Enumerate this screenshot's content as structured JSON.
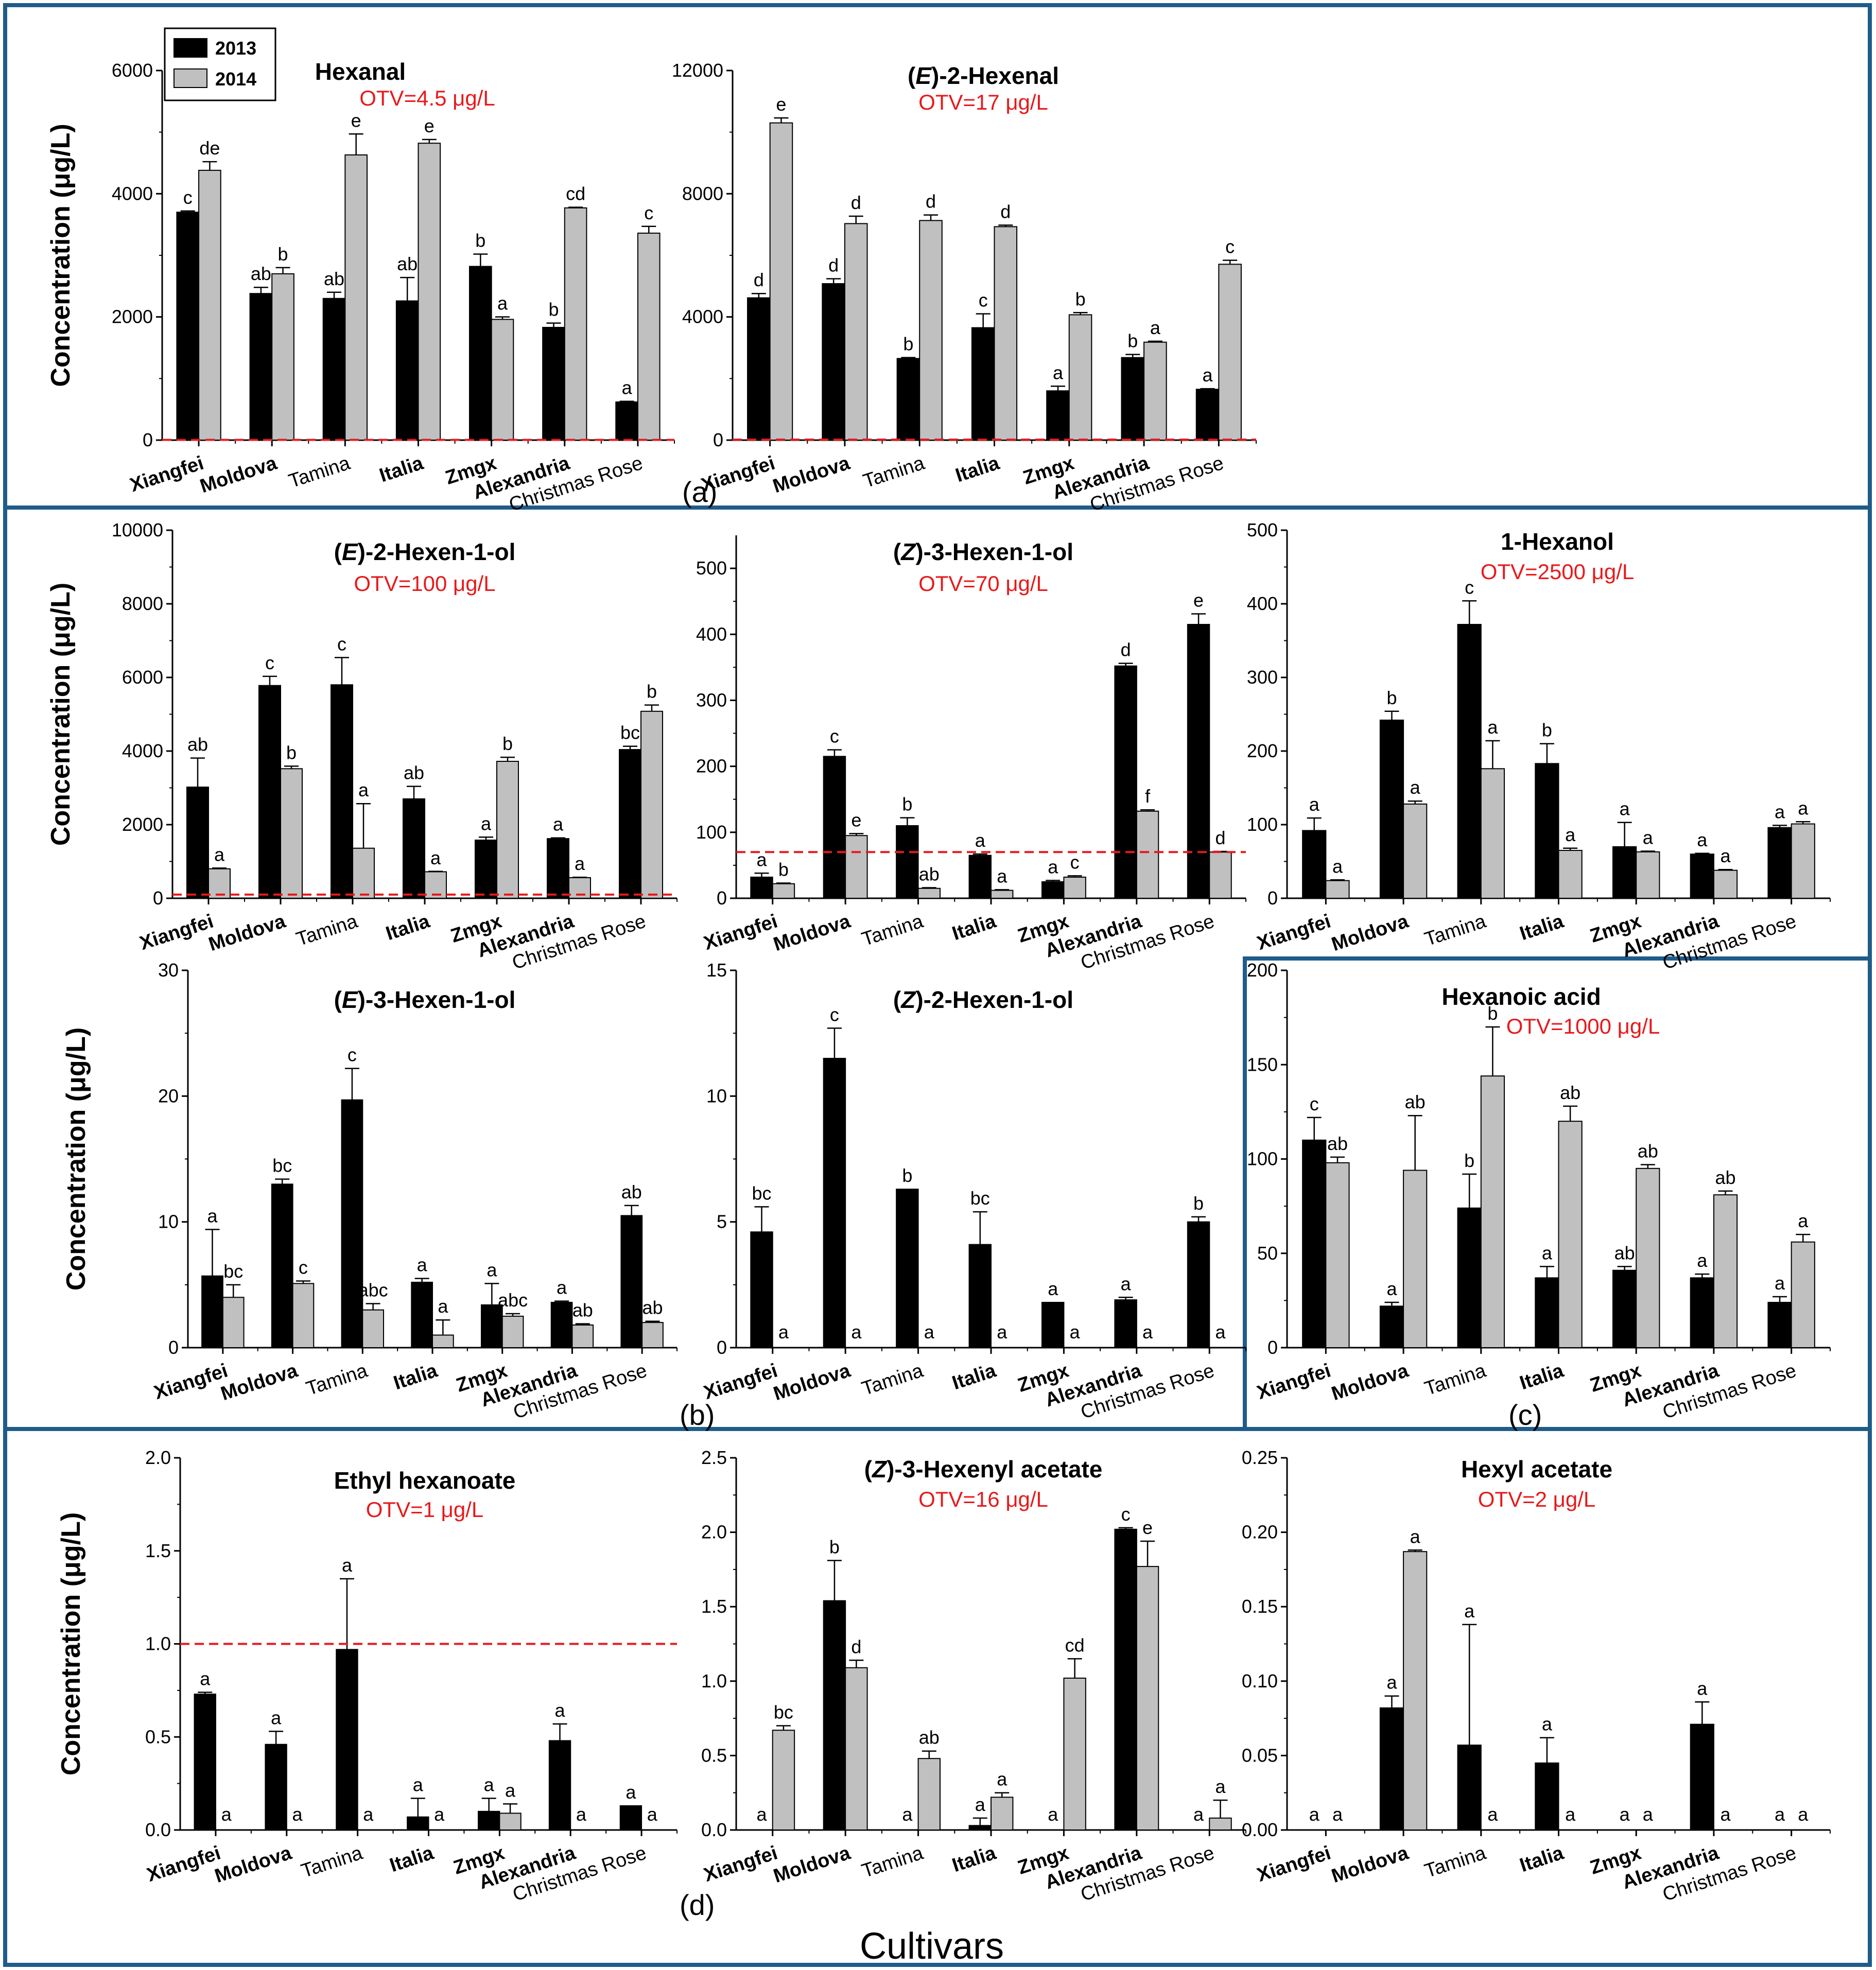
{
  "legend": [
    "2013",
    "2014"
  ],
  "colors": {
    "s2013": "#000000",
    "s2014": "#c0c0c0",
    "otv": "#e8191b",
    "frame": "#1f5c8a"
  },
  "cultivars": [
    "Xiangfei",
    "Moldova",
    "Tamina",
    "Italia",
    "Zmgx",
    "Alexandria",
    "Christmas Rose"
  ],
  "bold_cultivars": [
    "Xiangfei",
    "Moldova",
    "Italia",
    "Zmgx",
    "Alexandria"
  ],
  "panel_labels": [
    "(a)",
    "(b)",
    "(c)",
    "(d)"
  ],
  "x_title": "Cultivars",
  "ylabel": "Concentration (μg/L)",
  "chart_data": [
    {
      "id": "hexanal",
      "type": "bar",
      "title": "Hexanal",
      "title_parts": [
        {
          "t": "Hexanal",
          "i": false
        }
      ],
      "otv_label": "OTV=4.5 μg/L",
      "otv": 4.5,
      "ylim": [
        0,
        6000
      ],
      "yticks": [
        0,
        2000,
        4000,
        6000
      ],
      "series": [
        {
          "name": "2013",
          "values": [
            3700,
            2380,
            2300,
            2260,
            2820,
            1830,
            620
          ],
          "err": [
            20,
            100,
            100,
            380,
            200,
            70,
            10
          ],
          "sig": [
            "c",
            "ab",
            "ab",
            "ab",
            "b",
            "b",
            "a"
          ]
        },
        {
          "name": "2014",
          "values": [
            4380,
            2700,
            4630,
            4820,
            1960,
            3770,
            3360
          ],
          "err": [
            140,
            100,
            340,
            60,
            40,
            10,
            110
          ],
          "sig": [
            "de",
            "b",
            "e",
            "e",
            "a",
            "cd",
            "c"
          ]
        }
      ]
    },
    {
      "id": "e2hexenal",
      "type": "bar",
      "title": "(E)-2-Hexenal",
      "title_parts": [
        {
          "t": "(",
          "i": false
        },
        {
          "t": "E",
          "i": true
        },
        {
          "t": ")-2-Hexenal",
          "i": false
        }
      ],
      "otv_label": "OTV=17 μg/L",
      "otv": 17,
      "ylim": [
        0,
        12000
      ],
      "yticks": [
        0,
        4000,
        8000,
        12000
      ],
      "series": [
        {
          "name": "2013",
          "values": [
            4620,
            5080,
            2650,
            3650,
            1600,
            2680,
            1650
          ],
          "err": [
            140,
            160,
            30,
            450,
            150,
            100,
            20
          ],
          "sig": [
            "d",
            "d",
            "b",
            "c",
            "a",
            "b",
            "a"
          ]
        },
        {
          "name": "2014",
          "values": [
            10300,
            7030,
            7130,
            6930,
            4070,
            3180,
            5710
          ],
          "err": [
            160,
            240,
            180,
            50,
            70,
            30,
            130
          ],
          "sig": [
            "e",
            "d",
            "d",
            "d",
            "b",
            "a",
            "c"
          ]
        }
      ]
    },
    {
      "id": "e2hexenol",
      "type": "bar",
      "title": "(E)-2-Hexen-1-ol",
      "title_parts": [
        {
          "t": "(",
          "i": false
        },
        {
          "t": "E",
          "i": true
        },
        {
          "t": ")-2-Hexen-1-ol",
          "i": false
        }
      ],
      "otv_label": "OTV=100 μg/L",
      "otv": 100,
      "ylim": [
        0,
        10000
      ],
      "yticks": [
        0,
        2000,
        4000,
        6000,
        8000,
        10000
      ],
      "series": [
        {
          "name": "2013",
          "values": [
            3020,
            5780,
            5800,
            2700,
            1580,
            1620,
            4040
          ],
          "err": [
            790,
            250,
            740,
            340,
            80,
            20,
            90
          ],
          "sig": [
            "ab",
            "c",
            "c",
            "ab",
            "a",
            "a",
            "bc"
          ]
        },
        {
          "name": "2014",
          "values": [
            800,
            3520,
            1360,
            720,
            3720,
            560,
            5080
          ],
          "err": [
            20,
            70,
            1210,
            10,
            110,
            10,
            170
          ],
          "sig": [
            "a",
            "b",
            "a",
            "a",
            "b",
            "a",
            "b"
          ]
        }
      ]
    },
    {
      "id": "z3hexenol",
      "type": "bar",
      "title": "(Z)-3-Hexen-1-ol",
      "title_parts": [
        {
          "t": "(",
          "i": false
        },
        {
          "t": "Z",
          "i": true
        },
        {
          "t": ")-3-Hexen-1-ol",
          "i": false
        }
      ],
      "otv_label": "OTV=70 μg/L",
      "otv": 70,
      "ylim": [
        0,
        550
      ],
      "yticks": [
        0,
        100,
        200,
        300,
        400,
        500
      ],
      "series": [
        {
          "name": "2013",
          "values": [
            32,
            215,
            110,
            65,
            25,
            352,
            415
          ],
          "err": [
            6,
            10,
            12,
            2,
            2,
            4,
            16
          ],
          "sig": [
            "a",
            "c",
            "b",
            "a",
            "a",
            "d",
            "e"
          ]
        },
        {
          "name": "2014",
          "values": [
            22,
            95,
            15,
            12,
            32,
            132,
            70
          ],
          "err": [
            1,
            3,
            1,
            1,
            2,
            2,
            1
          ],
          "sig": [
            "b",
            "e",
            "ab",
            "a",
            "c",
            "f",
            "d"
          ]
        }
      ]
    },
    {
      "id": "hexanol",
      "type": "bar",
      "title": "1-Hexanol",
      "title_parts": [
        {
          "t": "1-Hexanol",
          "i": false
        }
      ],
      "otv_label": "OTV=2500 μg/L",
      "otv": 2500,
      "ylim": [
        0,
        500
      ],
      "yticks": [
        0,
        100,
        200,
        300,
        400,
        500
      ],
      "series": [
        {
          "name": "2013",
          "values": [
            92,
            242,
            372,
            183,
            70,
            60,
            96
          ],
          "err": [
            17,
            12,
            32,
            27,
            33,
            1,
            3
          ],
          "sig": [
            "a",
            "b",
            "c",
            "b",
            "a",
            "a",
            "a"
          ]
        },
        {
          "name": "2014",
          "values": [
            24,
            128,
            176,
            65,
            63,
            38,
            101
          ],
          "err": [
            1,
            4,
            38,
            3,
            1,
            1,
            3
          ],
          "sig": [
            "a",
            "a",
            "a",
            "a",
            "a",
            "a",
            "a"
          ]
        }
      ]
    },
    {
      "id": "e3hexenol",
      "type": "bar",
      "title": "(E)-3-Hexen-1-ol",
      "title_parts": [
        {
          "t": "(",
          "i": false
        },
        {
          "t": "E",
          "i": true
        },
        {
          "t": ")-3-Hexen-1-ol",
          "i": false
        }
      ],
      "otv_label": "",
      "ylim": [
        0,
        30
      ],
      "yticks": [
        0,
        10,
        20,
        30
      ],
      "series": [
        {
          "name": "2013",
          "values": [
            5.7,
            13.0,
            19.7,
            5.2,
            3.4,
            3.6,
            10.5
          ],
          "err": [
            3.7,
            0.4,
            2.5,
            0.3,
            1.7,
            0.1,
            0.8
          ],
          "sig": [
            "a",
            "bc",
            "c",
            "a",
            "a",
            "a",
            "ab"
          ]
        },
        {
          "name": "2014",
          "values": [
            4.0,
            5.1,
            3.0,
            1.0,
            2.5,
            1.8,
            2.0
          ],
          "err": [
            1.0,
            0.2,
            0.5,
            1.2,
            0.2,
            0.1,
            0.1
          ],
          "sig": [
            "bc",
            "c",
            "abc",
            "a",
            "abc",
            "ab",
            "ab"
          ]
        }
      ]
    },
    {
      "id": "z2hexenol",
      "type": "bar",
      "title": "(Z)-2-Hexen-1-ol",
      "title_parts": [
        {
          "t": "(",
          "i": false
        },
        {
          "t": "Z",
          "i": true
        },
        {
          "t": ")-2-Hexen-1-ol",
          "i": false
        }
      ],
      "otv_label": "",
      "ylim": [
        0,
        15
      ],
      "yticks": [
        0,
        5,
        10,
        15
      ],
      "series": [
        {
          "name": "2013",
          "values": [
            4.6,
            11.5,
            6.3,
            4.1,
            1.8,
            1.9,
            5.0
          ],
          "err": [
            1.0,
            1.2,
            0.0,
            1.3,
            0.0,
            0.1,
            0.2
          ],
          "sig": [
            "bc",
            "c",
            "b",
            "bc",
            "a",
            "a",
            "b"
          ]
        },
        {
          "name": "2014",
          "values": [
            0,
            0,
            0,
            0,
            0,
            0,
            0
          ],
          "err": [
            0,
            0,
            0,
            0,
            0,
            0,
            0
          ],
          "sig": [
            "a",
            "a",
            "a",
            "a",
            "a",
            "a",
            "a"
          ]
        }
      ]
    },
    {
      "id": "hexanoic",
      "type": "bar",
      "title": "Hexanoic acid",
      "title_parts": [
        {
          "t": "Hexanoic acid",
          "i": false
        }
      ],
      "otv_label": "OTV=1000 μg/L",
      "otv": 1000,
      "ylim": [
        0,
        200
      ],
      "yticks": [
        0,
        50,
        100,
        150,
        200
      ],
      "series": [
        {
          "name": "2013",
          "values": [
            110,
            22,
            74,
            37,
            41,
            37,
            24
          ],
          "err": [
            12,
            2,
            18,
            6,
            2,
            2,
            3
          ],
          "sig": [
            "c",
            "a",
            "b",
            "a",
            "ab",
            "a",
            "a"
          ]
        },
        {
          "name": "2014",
          "values": [
            98,
            94,
            144,
            120,
            95,
            81,
            56
          ],
          "err": [
            3,
            29,
            26,
            8,
            2,
            2,
            4
          ],
          "sig": [
            "ab",
            "ab",
            "b",
            "ab",
            "ab",
            "ab",
            "a"
          ]
        }
      ]
    },
    {
      "id": "ethylhexanoate",
      "type": "bar",
      "title": "Ethyl hexanoate",
      "title_parts": [
        {
          "t": "Ethyl hexanoate",
          "i": false
        }
      ],
      "otv_label": "OTV=1 μg/L",
      "otv": 1,
      "ylim": [
        0,
        2.0
      ],
      "yticks": [
        0.0,
        0.5,
        1.0,
        1.5,
        2.0
      ],
      "series": [
        {
          "name": "2013",
          "values": [
            0.73,
            0.46,
            0.97,
            0.07,
            0.1,
            0.48,
            0.13
          ],
          "err": [
            0.01,
            0.07,
            0.38,
            0.1,
            0.07,
            0.09,
            0.0
          ],
          "sig": [
            "a",
            "a",
            "a",
            "a",
            "a",
            "a",
            "a"
          ]
        },
        {
          "name": "2014",
          "values": [
            0,
            0,
            0,
            0,
            0.09,
            0,
            0
          ],
          "err": [
            0,
            0,
            0,
            0,
            0.05,
            0,
            0
          ],
          "sig": [
            "a",
            "a",
            "a",
            "a",
            "a",
            "a",
            "a"
          ]
        }
      ]
    },
    {
      "id": "z3hexenylacetate",
      "type": "bar",
      "title": "(Z)-3-Hexenyl acetate",
      "title_parts": [
        {
          "t": "(",
          "i": false
        },
        {
          "t": "Z",
          "i": true
        },
        {
          "t": ")-3-Hexenyl acetate",
          "i": false
        }
      ],
      "otv_label": "OTV=16 μg/L",
      "otv": 16,
      "ylim": [
        0,
        2.5
      ],
      "yticks": [
        0.0,
        0.5,
        1.0,
        1.5,
        2.0,
        2.5
      ],
      "series": [
        {
          "name": "2013",
          "values": [
            0,
            1.54,
            0,
            0.03,
            0,
            2.02,
            0
          ],
          "err": [
            0,
            0.27,
            0,
            0.05,
            0,
            0.01,
            0
          ],
          "sig": [
            "a",
            "b",
            "a",
            "a",
            "a",
            "c",
            "a"
          ]
        },
        {
          "name": "2014",
          "values": [
            0.67,
            1.09,
            0.48,
            0.22,
            1.02,
            1.77,
            0.08
          ],
          "err": [
            0.03,
            0.05,
            0.05,
            0.03,
            0.13,
            0.17,
            0.12
          ],
          "sig": [
            "bc",
            "d",
            "ab",
            "a",
            "cd",
            "e",
            "a"
          ]
        }
      ]
    },
    {
      "id": "hexylacetate",
      "type": "bar",
      "title": "Hexyl acetate",
      "title_parts": [
        {
          "t": "Hexyl acetate",
          "i": false
        }
      ],
      "otv_label": "OTV=2 μg/L",
      "otv": 2,
      "ylim": [
        0,
        0.25
      ],
      "yticks": [
        0.0,
        0.05,
        0.1,
        0.15,
        0.2,
        0.25
      ],
      "series": [
        {
          "name": "2013",
          "values": [
            0,
            0.082,
            0.057,
            0.045,
            0,
            0.071,
            0
          ],
          "err": [
            0,
            0.008,
            0.081,
            0.017,
            0,
            0.015,
            0
          ],
          "sig": [
            "a",
            "a",
            "a",
            "a",
            "a",
            "a",
            "a"
          ]
        },
        {
          "name": "2014",
          "values": [
            0,
            0.187,
            0,
            0,
            0,
            0,
            0
          ],
          "err": [
            0,
            0.001,
            0,
            0,
            0,
            0,
            0
          ],
          "sig": [
            "a",
            "a",
            "a",
            "a",
            "a",
            "a",
            "a"
          ]
        }
      ]
    }
  ]
}
